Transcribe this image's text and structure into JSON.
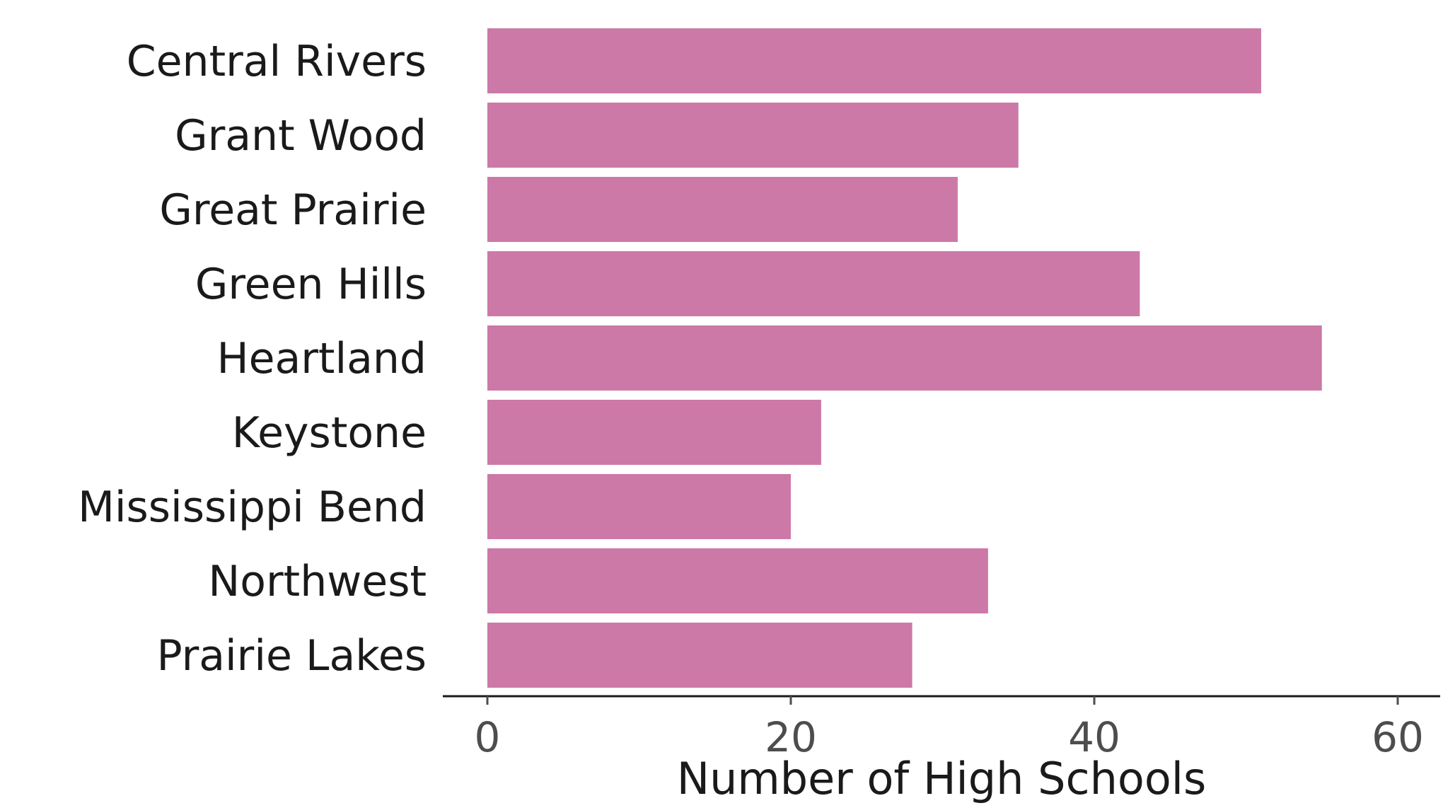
{
  "chart_data": {
    "type": "bar",
    "orientation": "horizontal",
    "categories": [
      "Central Rivers",
      "Grant Wood",
      "Great Prairie",
      "Green Hills",
      "Heartland",
      "Keystone",
      "Mississippi Bend",
      "Northwest",
      "Prairie Lakes"
    ],
    "values": [
      51,
      35,
      31,
      43,
      55,
      22,
      20,
      33,
      28
    ],
    "title": "",
    "xlabel": "Number of High Schools",
    "ylabel": "",
    "xlim": [
      0,
      60
    ],
    "xticks": [
      0,
      20,
      40,
      60
    ],
    "grid": false,
    "bar_color": "#cc79a7"
  }
}
